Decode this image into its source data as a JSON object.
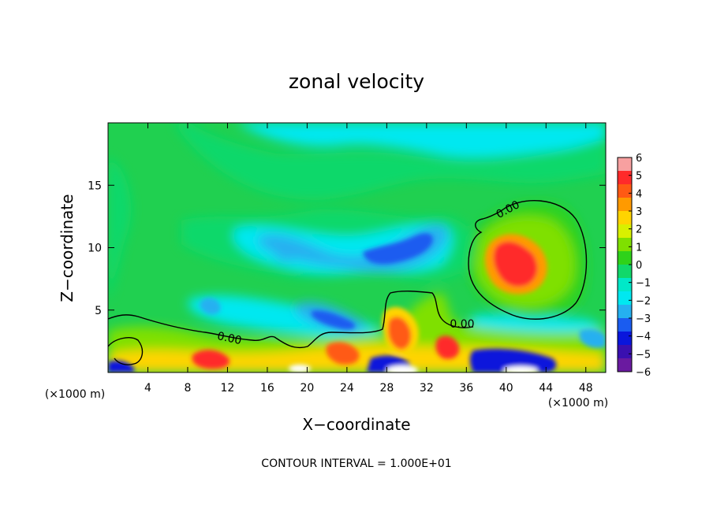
{
  "chart_data": {
    "type": "heatmap",
    "title": "zonal velocity",
    "xlabel": "X−coordinate",
    "ylabel": "Z−coordinate",
    "x_unit": "(×1000 m)",
    "y_unit": "(×1000 m)",
    "footer": "CONTOUR INTERVAL = 1.000E+01",
    "xlim": [
      0,
      50
    ],
    "ylim": [
      0,
      20
    ],
    "x_ticks": [
      4,
      8,
      12,
      16,
      20,
      24,
      28,
      32,
      36,
      40,
      44,
      48
    ],
    "x_tick_labels": [
      "4",
      "8",
      "12",
      "16",
      "20",
      "24",
      "28",
      "32",
      "36",
      "40",
      "44",
      "48"
    ],
    "y_ticks": [
      5,
      10,
      15
    ],
    "y_tick_labels": [
      "5",
      "10",
      "15"
    ],
    "colorbar": {
      "range": [
        -6,
        6
      ],
      "ticks": [
        6,
        5,
        4,
        3,
        2,
        1,
        0,
        -1,
        -2,
        -3,
        -4,
        -5,
        -6
      ],
      "tick_labels": [
        "6",
        "5",
        "4",
        "3",
        "2",
        "1",
        "0",
        "−1",
        "−2",
        "−3",
        "−4",
        "−5",
        "−6"
      ],
      "colors": [
        "#f7a0a0",
        "#ff2a2a",
        "#ff5a14",
        "#ff9a00",
        "#ffd400",
        "#d8f000",
        "#7fe000",
        "#2fd21a",
        "#11d86a",
        "#00e8c8",
        "#00e8f0",
        "#25b0f0",
        "#1a5cf0",
        "#0a16dc",
        "#3a10b0",
        "#6a1aa0"
      ]
    },
    "contour_label": "0.00",
    "features": [
      {
        "name": "positive core",
        "x": 40,
        "z": 8.5,
        "value": 5
      },
      {
        "name": "negative core",
        "x": 30,
        "z": 10.5,
        "value": -3
      },
      {
        "name": "negative lobe",
        "x": 23,
        "z": 4.3,
        "value": -4
      },
      {
        "name": "surface positive",
        "x": 30,
        "z": 3,
        "value": 3
      },
      {
        "name": "cyan top band",
        "x": 30,
        "z": 19,
        "value": -1.5
      }
    ]
  },
  "colors": {
    "background": "#20d050",
    "cyan": "#00e8f0",
    "contour": "#000000"
  }
}
